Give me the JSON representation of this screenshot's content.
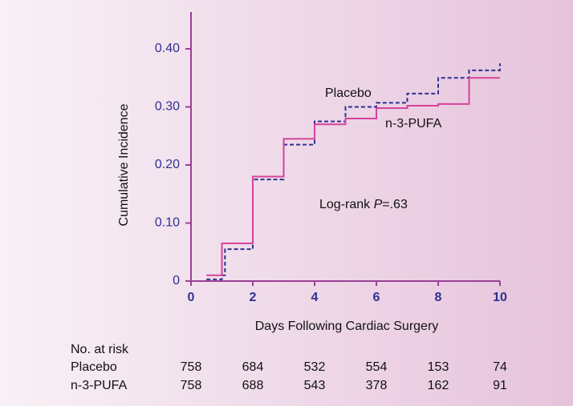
{
  "chart_data": {
    "type": "line",
    "step": "post",
    "y_label": "Cumulative Incidence",
    "x_label": "Days Following Cardiac Surgery",
    "annotation": [
      "Log-rank ",
      "P",
      "=.63"
    ],
    "xlim": [
      0,
      10
    ],
    "ylim": [
      0,
      0.4
    ],
    "xticks": [
      0,
      2,
      4,
      6,
      8,
      10
    ],
    "yticks": [
      0,
      {
        "value": 0.1,
        "label": "0.10"
      },
      {
        "value": 0.2,
        "label": "0.20"
      },
      {
        "value": 0.3,
        "label": "0.30"
      },
      {
        "value": 0.4,
        "label": "0.40"
      }
    ],
    "series": [
      {
        "name": "Placebo",
        "color": "#2e3192",
        "dashed": true,
        "x": [
          0.5,
          1,
          1.1,
          2,
          3,
          4,
          5,
          6,
          7,
          8,
          9,
          10
        ],
        "values": [
          0.003,
          0.01,
          0.055,
          0.175,
          0.235,
          0.275,
          0.3,
          0.307,
          0.323,
          0.35,
          0.363,
          0.375
        ]
      },
      {
        "name": "n-3-PUFA",
        "color": "#d6429a",
        "dashed": false,
        "x": [
          0.5,
          1,
          2,
          3,
          4,
          5,
          6,
          7,
          8,
          9,
          10
        ],
        "values": [
          0.01,
          0.065,
          0.18,
          0.245,
          0.27,
          0.28,
          0.298,
          0.302,
          0.305,
          0.35,
          0.35
        ]
      }
    ],
    "risk_table": {
      "title": "No. at risk",
      "rows": [
        [
          758,
          684,
          532,
          554,
          153,
          74
        ],
        [
          758,
          688,
          543,
          378,
          162,
          91
        ]
      ]
    }
  }
}
